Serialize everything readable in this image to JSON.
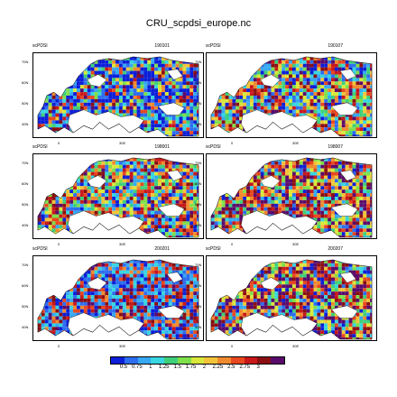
{
  "title": "CRU_scpdsi_europe.nc",
  "variable_label": "scPDSI",
  "panels": [
    {
      "date": "190101",
      "palette": "wet"
    },
    {
      "date": "190107",
      "palette": "mixed"
    },
    {
      "date": "198001",
      "palette": "mixed"
    },
    {
      "date": "198007",
      "palette": "dry"
    },
    {
      "date": "200201",
      "palette": "wetdry"
    },
    {
      "date": "200207",
      "palette": "dry"
    }
  ],
  "lat_ticks": [
    "70N",
    "60N",
    "50N",
    "40N"
  ],
  "lon_ticks": [
    "0",
    "30E"
  ],
  "colorbar": {
    "colors": [
      "#0b1fd8",
      "#2d6df0",
      "#36a9f2",
      "#37d6e0",
      "#3fd07a",
      "#7fe04a",
      "#d9e83a",
      "#f2c43a",
      "#f08a2e",
      "#e8481f",
      "#c8181a",
      "#8b0f12",
      "#5a0a6c"
    ],
    "labels": [
      "0.5",
      "0.75",
      "1",
      "1.25",
      "1.5",
      "1.75",
      "2",
      "2.25",
      "2.5",
      "2.75",
      "3"
    ]
  }
}
